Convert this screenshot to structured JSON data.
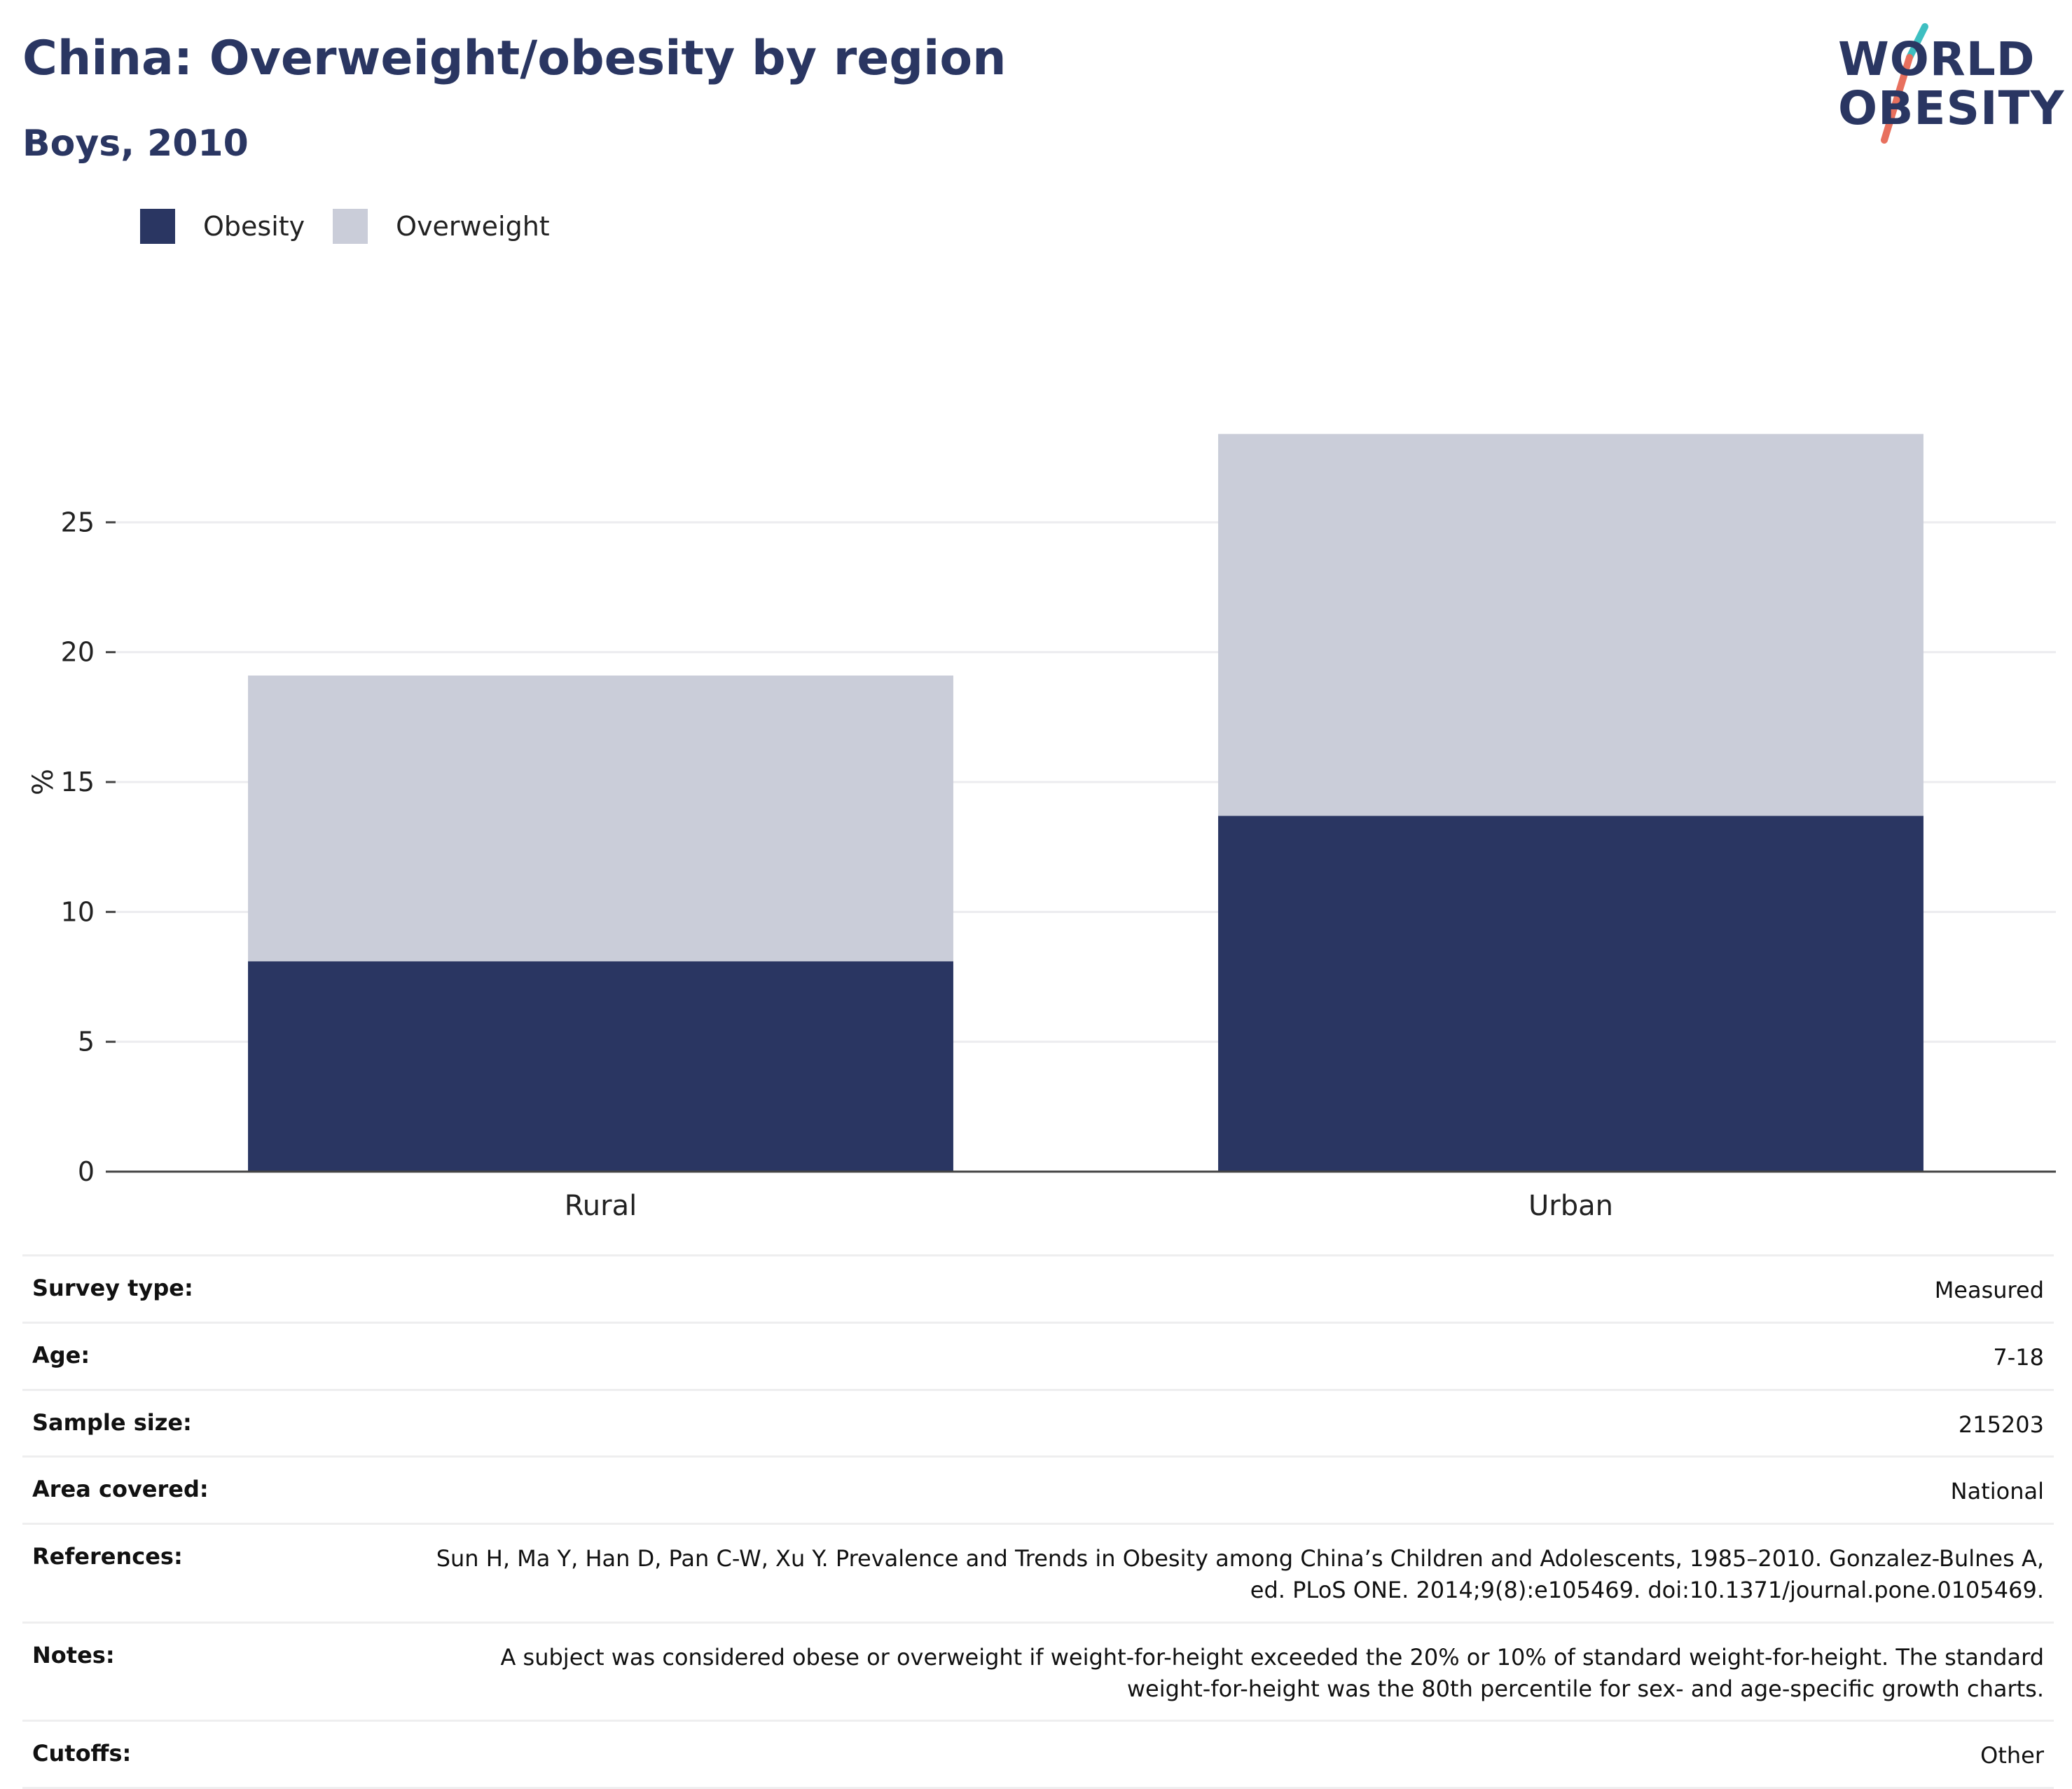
{
  "header": {
    "title": "China: Overweight/obesity by region",
    "subtitle": "Boys, 2010",
    "logo_line1": "WORLD",
    "logo_line2": "OBESITY"
  },
  "colors": {
    "obesity": "#2a3662",
    "overweight": "#cacdd9",
    "logo_teal": "#3ebfc1",
    "logo_red": "#e8705e"
  },
  "chart_data": {
    "type": "bar",
    "stacked": true,
    "categories": [
      "Rural",
      "Urban"
    ],
    "series": [
      {
        "name": "Obesity",
        "values": [
          8.1,
          13.7
        ]
      },
      {
        "name": "Overweight",
        "values": [
          11.0,
          14.7
        ]
      }
    ],
    "ylabel": "%",
    "ylim": [
      0,
      30
    ],
    "yticks": [
      0,
      5,
      10,
      15,
      20,
      25
    ],
    "grid": true,
    "legend": "top-left"
  },
  "info": {
    "rows": [
      {
        "key": "Survey type:",
        "value": "Measured"
      },
      {
        "key": "Age:",
        "value": "7-18"
      },
      {
        "key": "Sample size:",
        "value": "215203"
      },
      {
        "key": "Area covered:",
        "value": "National"
      },
      {
        "key": "References:",
        "value": "Sun H, Ma Y, Han D, Pan C-W, Xu Y. Prevalence and Trends in Obesity among China’s Children and Adolescents, 1985–2010. Gonzalez-Bulnes A, ed. PLoS ONE. 2014;9(8):e105469. doi:10.1371/journal.pone.0105469."
      },
      {
        "key": "Notes:",
        "value": "A subject was considered obese or overweight if weight-for-height exceeded the 20% or 10% of standard weight-for-height. The standard weight-for-height was the 80th percentile for sex- and age-specific growth charts."
      },
      {
        "key": "Cutoffs:",
        "value": "Other"
      }
    ]
  }
}
